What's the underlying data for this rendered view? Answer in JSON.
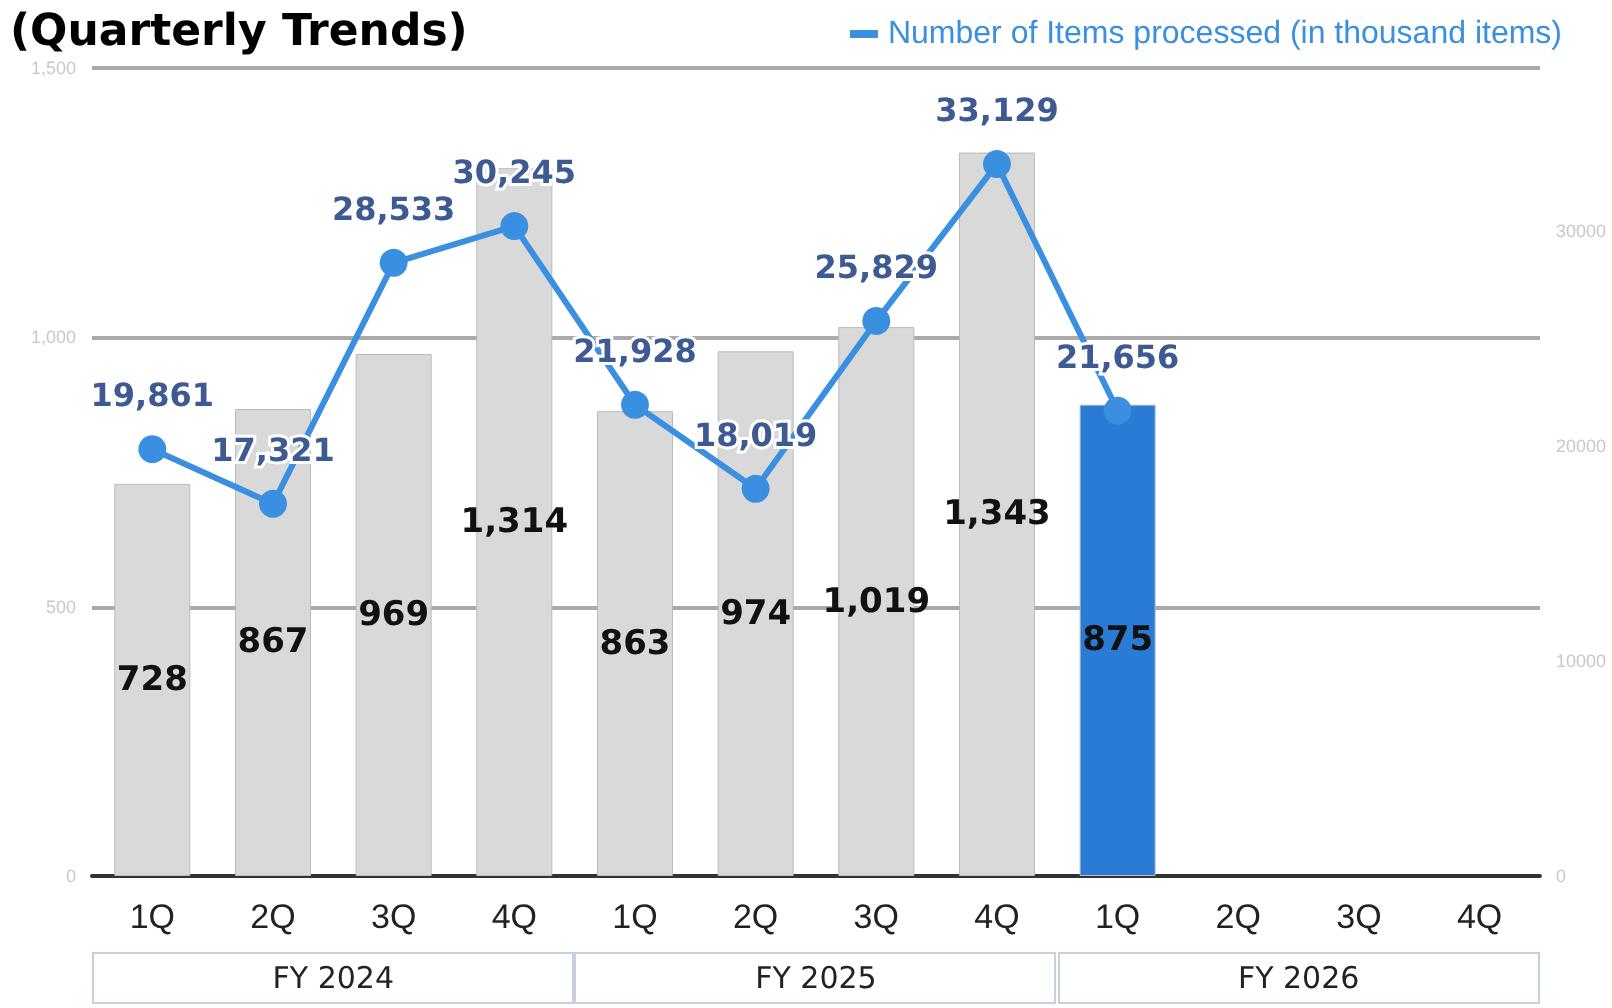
{
  "chart_data": {
    "type": "bar",
    "title": "(Quarterly Trends)",
    "categories": [
      "1Q",
      "2Q",
      "3Q",
      "4Q",
      "1Q",
      "2Q",
      "3Q",
      "4Q",
      "1Q",
      "2Q",
      "3Q",
      "4Q"
    ],
    "annotations": [
      "FY 2024",
      "FY 2025",
      "FY 2026"
    ],
    "series": [
      {
        "colors": [
          "#d9d9d9",
          "#d9d9d9",
          "#d9d9d9",
          "#d9d9d9",
          "#d9d9d9",
          "#d9d9d9",
          "#d9d9d9",
          "#d9d9d9",
          "#2a7bd5",
          "#d9d9d9",
          "#d9d9d9",
          "#d9d9d9"
        ],
        "values": [
          728,
          867,
          969,
          1314,
          863,
          974,
          1019,
          1343,
          875,
          null,
          null,
          null
        ],
        "value_labels": [
          "728",
          "867",
          "969",
          "1,314",
          "863",
          "974",
          "1,019",
          "1,343",
          "875",
          null,
          null,
          null
        ]
      },
      {
        "type": "line",
        "name": "Number of Items processed (in thousand items)",
        "color": "#3b8fe0",
        "axis": "y2",
        "marker": "circle",
        "values": [
          19861,
          17321,
          28533,
          30245,
          21928,
          18019,
          25829,
          33129,
          21656,
          null,
          null,
          null
        ],
        "value_labels": [
          "19,861",
          "17,321",
          "28,533",
          "30,245",
          "21,928",
          "18,019",
          "25,829",
          "33,129",
          "21,656",
          null,
          null,
          null
        ]
      }
    ],
    "ylim": [
      0,
      1500
    ],
    "yticks": [
      0,
      {
        "value": 500,
        "label": "500"
      },
      {
        "value": 1000,
        "label": "1,000"
      },
      {
        "value": 1500,
        "label": "1,500"
      }
    ],
    "y2lim": [
      0,
      37600
    ],
    "y2ticks": [
      0,
      10000,
      20000,
      30000
    ],
    "grid": "y",
    "legend": "top right"
  }
}
